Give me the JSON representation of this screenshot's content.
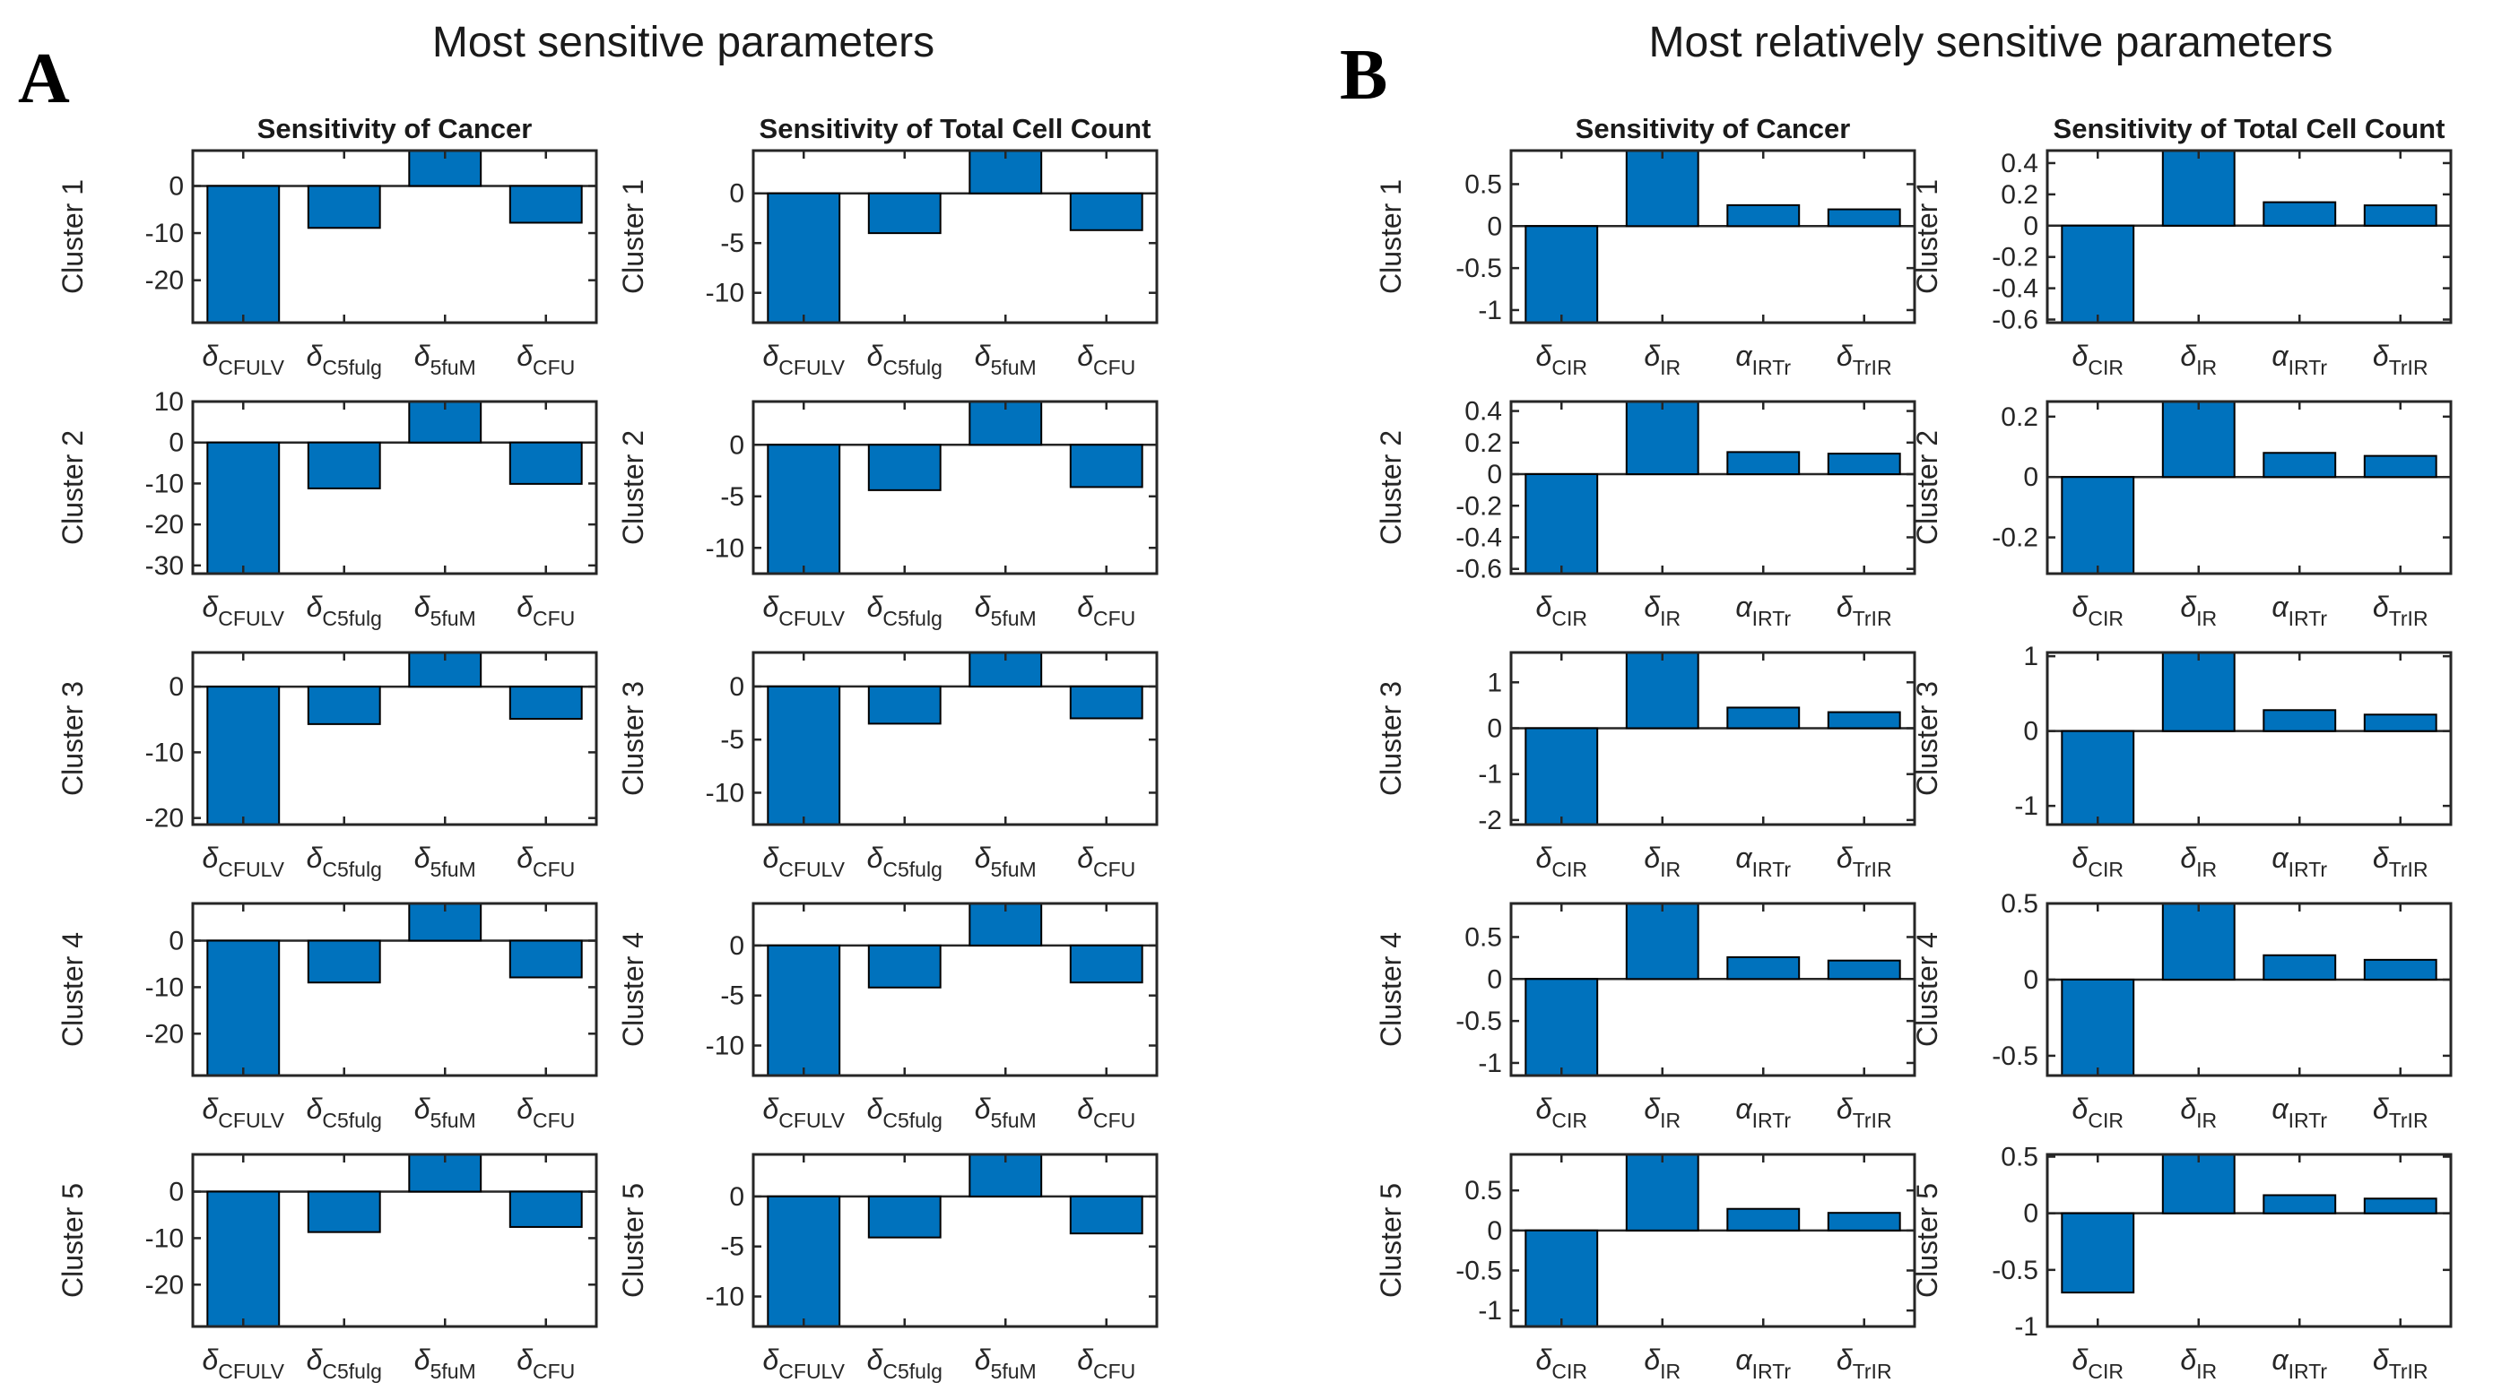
{
  "panels": {
    "a": {
      "label": "A",
      "title": "Most sensitive parameters",
      "column_titles": [
        "Sensitivity of Cancer",
        "Sensitivity of Total Cell Count"
      ]
    },
    "b": {
      "label": "B",
      "title": "Most relatively sensitive parameters",
      "column_titles": [
        "Sensitivity of Cancer",
        "Sensitivity of Total Cell Count"
      ]
    }
  },
  "colors": {
    "bar_fill": "#0072BD",
    "bar_edge": "#000000",
    "axis": "#262626",
    "text": "#262626",
    "background": "#FFFFFF"
  },
  "chart_data": [
    {
      "type": "bar",
      "panel": "A",
      "row": 1,
      "column": 1,
      "column_title": "Sensitivity of Cancer",
      "ylabel": "Cluster 1",
      "categories": [
        "δ_CFULV",
        "δ_C5fulg",
        "δ_5fuM",
        "δ_CFU"
      ],
      "values": [
        -31,
        -8.9,
        8.5,
        -7.8
      ],
      "yticks": [
        0,
        -10,
        -20
      ],
      "ylim": [
        -29,
        7.5
      ],
      "grid": false,
      "note": "first and third bars clipped at axis limits"
    },
    {
      "type": "bar",
      "panel": "A",
      "row": 1,
      "column": 2,
      "column_title": "Sensitivity of Total Cell Count",
      "ylabel": "Cluster 1",
      "categories": [
        "δ_CFULV",
        "δ_C5fulg",
        "δ_5fuM",
        "δ_CFU"
      ],
      "values": [
        -14,
        -4,
        5,
        -3.7
      ],
      "yticks": [
        0,
        -5,
        -10
      ],
      "ylim": [
        -13,
        4.3
      ],
      "grid": false
    },
    {
      "type": "bar",
      "panel": "A",
      "row": 2,
      "column": 1,
      "column_title": "Sensitivity of Cancer",
      "ylabel": "Cluster 2",
      "categories": [
        "δ_CFULV",
        "δ_C5fulg",
        "δ_5fuM",
        "δ_CFU"
      ],
      "values": [
        -34,
        -11.2,
        11,
        -10.1
      ],
      "yticks": [
        10,
        0,
        -10,
        -20,
        -30
      ],
      "ylim": [
        -32,
        10
      ],
      "grid": false
    },
    {
      "type": "bar",
      "panel": "A",
      "row": 2,
      "column": 2,
      "column_title": "Sensitivity of Total Cell Count",
      "ylabel": "Cluster 2",
      "categories": [
        "δ_CFULV",
        "δ_C5fulg",
        "δ_5fuM",
        "δ_CFU"
      ],
      "values": [
        -13.5,
        -4.4,
        5,
        -4.1
      ],
      "yticks": [
        0,
        -5,
        -10
      ],
      "ylim": [
        -12.5,
        4.2
      ],
      "grid": false
    },
    {
      "type": "bar",
      "panel": "A",
      "row": 3,
      "column": 1,
      "column_title": "Sensitivity of Cancer",
      "ylabel": "Cluster 3",
      "categories": [
        "δ_CFULV",
        "δ_C5fulg",
        "δ_5fuM",
        "δ_CFU"
      ],
      "values": [
        -23,
        -5.7,
        6,
        -4.9
      ],
      "yticks": [
        0,
        -10,
        -20
      ],
      "ylim": [
        -21,
        5.2
      ],
      "grid": false
    },
    {
      "type": "bar",
      "panel": "A",
      "row": 3,
      "column": 2,
      "column_title": "Sensitivity of Total Cell Count",
      "ylabel": "Cluster 3",
      "categories": [
        "δ_CFULV",
        "δ_C5fulg",
        "δ_5fuM",
        "δ_CFU"
      ],
      "values": [
        -14,
        -3.5,
        4,
        -3
      ],
      "yticks": [
        0,
        -5,
        -10
      ],
      "ylim": [
        -13,
        3.2
      ],
      "grid": false
    },
    {
      "type": "bar",
      "panel": "A",
      "row": 4,
      "column": 1,
      "column_title": "Sensitivity of Cancer",
      "ylabel": "Cluster 4",
      "categories": [
        "δ_CFULV",
        "δ_C5fulg",
        "δ_5fuM",
        "δ_CFU"
      ],
      "values": [
        -31,
        -9,
        9,
        -7.9
      ],
      "yticks": [
        0,
        -10,
        -20
      ],
      "ylim": [
        -29,
        8
      ],
      "grid": false
    },
    {
      "type": "bar",
      "panel": "A",
      "row": 4,
      "column": 2,
      "column_title": "Sensitivity of Total Cell Count",
      "ylabel": "Cluster 4",
      "categories": [
        "δ_CFULV",
        "δ_C5fulg",
        "δ_5fuM",
        "δ_CFU"
      ],
      "values": [
        -14,
        -4.2,
        5,
        -3.7
      ],
      "yticks": [
        0,
        -5,
        -10
      ],
      "ylim": [
        -13,
        4.2
      ],
      "grid": false
    },
    {
      "type": "bar",
      "panel": "A",
      "row": 5,
      "column": 1,
      "column_title": "Sensitivity of Cancer",
      "ylabel": "Cluster 5",
      "categories": [
        "δ_CFULV",
        "δ_C5fulg",
        "δ_5fuM",
        "δ_CFU"
      ],
      "values": [
        -31,
        -8.7,
        9,
        -7.6
      ],
      "yticks": [
        0,
        -10,
        -20
      ],
      "ylim": [
        -29,
        8
      ],
      "grid": false
    },
    {
      "type": "bar",
      "panel": "A",
      "row": 5,
      "column": 2,
      "column_title": "Sensitivity of Total Cell Count",
      "ylabel": "Cluster 5",
      "categories": [
        "δ_CFULV",
        "δ_C5fulg",
        "δ_5fuM",
        "δ_CFU"
      ],
      "values": [
        -14,
        -4.1,
        5,
        -3.7
      ],
      "yticks": [
        0,
        -5,
        -10
      ],
      "ylim": [
        -13,
        4.2
      ],
      "grid": false
    },
    {
      "type": "bar",
      "panel": "B",
      "row": 1,
      "column": 1,
      "column_title": "Sensitivity of Cancer",
      "ylabel": "Cluster 1",
      "categories": [
        "δ_CIR",
        "δ_IR",
        "α_IRTr",
        "δ_TrIR"
      ],
      "values": [
        -1.25,
        1,
        0.25,
        0.2
      ],
      "yticks": [
        0.5,
        0,
        -0.5,
        -1
      ],
      "ylim": [
        -1.15,
        0.9
      ],
      "grid": false
    },
    {
      "type": "bar",
      "panel": "B",
      "row": 1,
      "column": 2,
      "column_title": "Sensitivity of Total Cell Count",
      "ylabel": "Cluster 1",
      "categories": [
        "δ_CIR",
        "δ_IR",
        "α_IRTr",
        "δ_TrIR"
      ],
      "values": [
        -0.7,
        0.55,
        0.15,
        0.13
      ],
      "yticks": [
        0.4,
        0.2,
        0,
        -0.2,
        -0.4,
        -0.6
      ],
      "ylim": [
        -0.62,
        0.48
      ],
      "grid": false
    },
    {
      "type": "bar",
      "panel": "B",
      "row": 2,
      "column": 1,
      "column_title": "Sensitivity of Cancer",
      "ylabel": "Cluster 2",
      "categories": [
        "δ_CIR",
        "δ_IR",
        "α_IRTr",
        "δ_TrIR"
      ],
      "values": [
        -0.7,
        0.5,
        0.14,
        0.13
      ],
      "yticks": [
        0.4,
        0.2,
        0,
        -0.2,
        -0.4,
        -0.6
      ],
      "ylim": [
        -0.63,
        0.46
      ],
      "grid": false
    },
    {
      "type": "bar",
      "panel": "B",
      "row": 2,
      "column": 2,
      "column_title": "Sensitivity of Total Cell Count",
      "ylabel": "Cluster 2",
      "categories": [
        "δ_CIR",
        "δ_IR",
        "α_IRTr",
        "δ_TrIR"
      ],
      "values": [
        -0.36,
        0.28,
        0.08,
        0.07
      ],
      "yticks": [
        0.2,
        0,
        -0.2
      ],
      "ylim": [
        -0.32,
        0.25
      ],
      "grid": false
    },
    {
      "type": "bar",
      "panel": "B",
      "row": 3,
      "column": 1,
      "column_title": "Sensitivity of Cancer",
      "ylabel": "Cluster 3",
      "categories": [
        "δ_CIR",
        "δ_IR",
        "α_IRTr",
        "δ_TrIR"
      ],
      "values": [
        -2.3,
        1.8,
        0.45,
        0.35
      ],
      "yticks": [
        1,
        0,
        -1,
        -2
      ],
      "ylim": [
        -2.1,
        1.65
      ],
      "grid": false
    },
    {
      "type": "bar",
      "panel": "B",
      "row": 3,
      "column": 2,
      "column_title": "Sensitivity of Total Cell Count",
      "ylabel": "Cluster 3",
      "categories": [
        "δ_CIR",
        "δ_IR",
        "α_IRTr",
        "δ_TrIR"
      ],
      "values": [
        -1.35,
        1.1,
        0.28,
        0.22
      ],
      "yticks": [
        1,
        0,
        -1
      ],
      "ylim": [
        -1.25,
        1.05
      ],
      "grid": false
    },
    {
      "type": "bar",
      "panel": "B",
      "row": 4,
      "column": 1,
      "column_title": "Sensitivity of Cancer",
      "ylabel": "Cluster 4",
      "categories": [
        "δ_CIR",
        "δ_IR",
        "α_IRTr",
        "δ_TrIR"
      ],
      "values": [
        -1.25,
        1,
        0.26,
        0.22
      ],
      "yticks": [
        0.5,
        0,
        -0.5,
        -1
      ],
      "ylim": [
        -1.15,
        0.9
      ],
      "grid": false
    },
    {
      "type": "bar",
      "panel": "B",
      "row": 4,
      "column": 2,
      "column_title": "Sensitivity of Total Cell Count",
      "ylabel": "Cluster 4",
      "categories": [
        "δ_CIR",
        "δ_IR",
        "α_IRTr",
        "δ_TrIR"
      ],
      "values": [
        -0.7,
        0.55,
        0.16,
        0.13
      ],
      "yticks": [
        0.5,
        0,
        -0.5
      ],
      "ylim": [
        -0.63,
        0.5
      ],
      "grid": false
    },
    {
      "type": "bar",
      "panel": "B",
      "row": 5,
      "column": 1,
      "column_title": "Sensitivity of Cancer",
      "ylabel": "Cluster 5",
      "categories": [
        "δ_CIR",
        "δ_IR",
        "α_IRTr",
        "δ_TrIR"
      ],
      "values": [
        -1.3,
        1.05,
        0.27,
        0.22
      ],
      "yticks": [
        0.5,
        0,
        -0.5,
        -1
      ],
      "ylim": [
        -1.2,
        0.95
      ],
      "grid": false
    },
    {
      "type": "bar",
      "panel": "B",
      "row": 5,
      "column": 2,
      "column_title": "Sensitivity of Total Cell Count",
      "ylabel": "Cluster 5",
      "categories": [
        "δ_CIR",
        "δ_IR",
        "α_IRTr",
        "δ_TrIR"
      ],
      "values": [
        -0.7,
        0.6,
        0.16,
        0.13
      ],
      "yticks": [
        0.5,
        0,
        -0.5,
        -1
      ],
      "ylim": [
        -1,
        0.52
      ],
      "grid": false,
      "note": "first bar ends at -0.7, not clipped"
    }
  ]
}
